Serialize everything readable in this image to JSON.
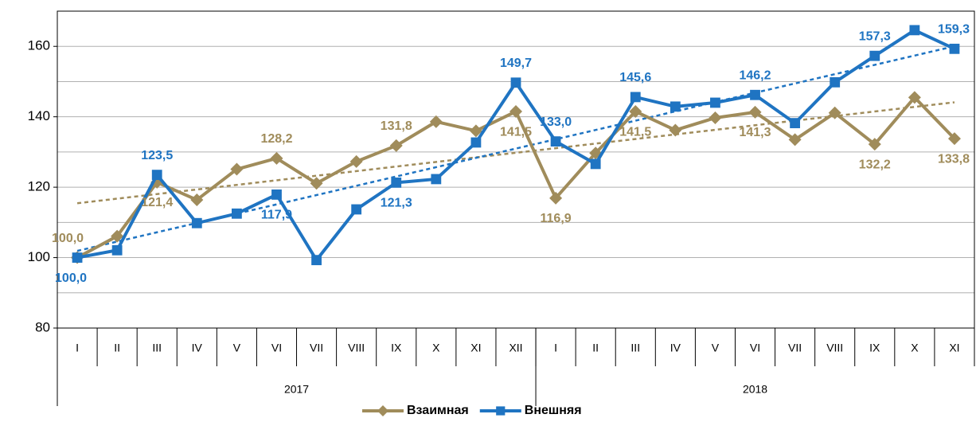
{
  "chart_data": {
    "type": "line",
    "category_groups": [
      {
        "name": "2017",
        "categories": [
          "I",
          "II",
          "III",
          "IV",
          "V",
          "VI",
          "VII",
          "VIII",
          "IX",
          "X",
          "XI",
          "XII"
        ]
      },
      {
        "name": "2018",
        "categories": [
          "I",
          "II",
          "III",
          "IV",
          "V",
          "VI",
          "VII",
          "VIII",
          "IX",
          "X",
          "XI"
        ]
      }
    ],
    "series": [
      {
        "name": "Взаимная",
        "color": "#a08c5b",
        "marker": "diamond",
        "values": [
          100.0,
          106.1,
          121.4,
          116.4,
          125.1,
          128.2,
          121.1,
          127.3,
          131.8,
          138.6,
          136.0,
          141.5,
          116.9,
          129.7,
          141.5,
          136.2,
          139.7,
          141.3,
          133.5,
          141.1,
          132.2,
          145.5,
          133.8
        ],
        "value_labels": [
          "100,0",
          null,
          "121,4",
          null,
          null,
          "128,2",
          null,
          null,
          "131,8",
          null,
          null,
          "141,5",
          "116,9",
          null,
          "141,5",
          null,
          null,
          "141,3",
          null,
          null,
          "132,2",
          null,
          "133,8"
        ]
      },
      {
        "name": "Внешняя",
        "color": "#1f74c2",
        "marker": "square",
        "values": [
          100.0,
          102.1,
          123.5,
          109.8,
          112.5,
          117.9,
          99.3,
          113.7,
          121.3,
          122.3,
          132.7,
          149.7,
          133.0,
          126.6,
          145.6,
          142.9,
          144.0,
          146.2,
          138.2,
          149.8,
          157.3,
          164.6,
          159.3
        ],
        "value_labels": [
          "100,0",
          null,
          "123,5",
          null,
          null,
          "117,9",
          null,
          null,
          "121,3",
          null,
          null,
          "149,7",
          "133,0",
          null,
          "145,6",
          null,
          null,
          "146,2",
          null,
          null,
          "157,3",
          null,
          "159,3"
        ]
      }
    ],
    "ylim": [
      80,
      170
    ],
    "yticks": [
      80,
      100,
      120,
      140,
      160
    ],
    "ygrid": [
      90,
      100,
      110,
      120,
      130,
      140,
      150,
      160
    ],
    "trendline": true,
    "legend": "bottom"
  }
}
